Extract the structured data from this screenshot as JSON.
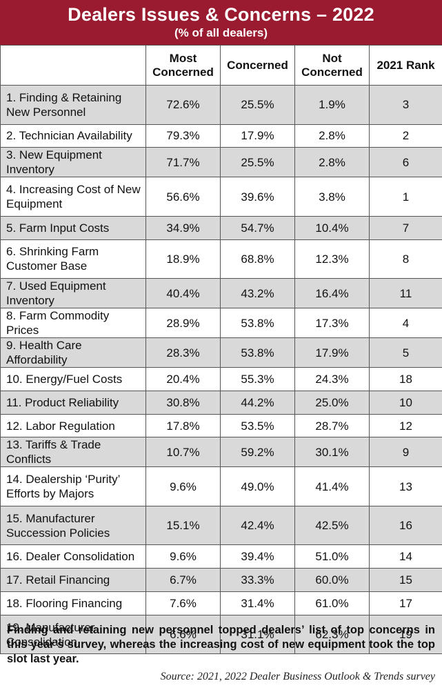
{
  "title": "Dealers Issues & Concerns – 2022",
  "subtitle": "(% of all dealers)",
  "chart_data": {
    "type": "table",
    "columns": [
      "",
      "Most Concerned",
      "Concerned",
      "Not Concerned",
      "2021 Rank"
    ],
    "rows": [
      {
        "issue": "1. Finding & Retaining New Personnel",
        "most": "72.6%",
        "concerned": "25.5%",
        "not": "1.9%",
        "rank": "3",
        "tall": true
      },
      {
        "issue": "2. Technician Availability",
        "most": "79.3%",
        "concerned": "17.9%",
        "not": "2.8%",
        "rank": "2",
        "tall": false
      },
      {
        "issue": "3. New Equipment Inventory",
        "most": "71.7%",
        "concerned": "25.5%",
        "not": "2.8%",
        "rank": "6",
        "tall": false
      },
      {
        "issue": "4. Increasing Cost of New Equipment",
        "most": "56.6%",
        "concerned": "39.6%",
        "not": "3.8%",
        "rank": "1",
        "tall": true
      },
      {
        "issue": "5. Farm Input Costs",
        "most": "34.9%",
        "concerned": "54.7%",
        "not": "10.4%",
        "rank": "7",
        "tall": false
      },
      {
        "issue": "6. Shrinking Farm Customer Base",
        "most": "18.9%",
        "concerned": "68.8%",
        "not": "12.3%",
        "rank": "8",
        "tall": true
      },
      {
        "issue": "7. Used Equipment Inventory",
        "most": "40.4%",
        "concerned": "43.2%",
        "not": "16.4%",
        "rank": "11",
        "tall": false
      },
      {
        "issue": "8. Farm Commodity Prices",
        "most": "28.9%",
        "concerned": "53.8%",
        "not": "17.3%",
        "rank": "4",
        "tall": false
      },
      {
        "issue": "9. Health Care Affordability",
        "most": "28.3%",
        "concerned": "53.8%",
        "not": "17.9%",
        "rank": "5",
        "tall": false
      },
      {
        "issue": "10. Energy/Fuel Costs",
        "most": "20.4%",
        "concerned": "55.3%",
        "not": "24.3%",
        "rank": "18",
        "tall": false
      },
      {
        "issue": "11. Product Reliability",
        "most": "30.8%",
        "concerned": "44.2%",
        "not": "25.0%",
        "rank": "10",
        "tall": false
      },
      {
        "issue": "12. Labor Regulation",
        "most": "17.8%",
        "concerned": "53.5%",
        "not": "28.7%",
        "rank": "12",
        "tall": false
      },
      {
        "issue": "13. Tariffs & Trade Conflicts",
        "most": "10.7%",
        "concerned": "59.2%",
        "not": "30.1%",
        "rank": "9",
        "tall": false
      },
      {
        "issue": "14. Dealership ‘Purity’ Efforts by Majors",
        "most": "9.6%",
        "concerned": "49.0%",
        "not": "41.4%",
        "rank": "13",
        "tall": true
      },
      {
        "issue": "15. Manufacturer Succession Policies",
        "most": "15.1%",
        "concerned": "42.4%",
        "not": "42.5%",
        "rank": "16",
        "tall": true
      },
      {
        "issue": "16. Dealer Consolidation",
        "most": "9.6%",
        "concerned": "39.4%",
        "not": "51.0%",
        "rank": "14",
        "tall": false
      },
      {
        "issue": "17. Retail Financing",
        "most": "6.7%",
        "concerned": "33.3%",
        "not": "60.0%",
        "rank": "15",
        "tall": false
      },
      {
        "issue": "18. Flooring Financing",
        "most": "7.6%",
        "concerned": "31.4%",
        "not": "61.0%",
        "rank": "17",
        "tall": false
      },
      {
        "issue": "19. Manufacturer Consolidation",
        "most": "6.6%",
        "concerned": "31.1%",
        "not": "62.3%",
        "rank": "19",
        "tall": true
      }
    ]
  },
  "caption": "Finding and retaining new personnel topped dealers’ list of top concerns in this year’s survey, whereas the increasing cost of new equipment took the top slot last year.",
  "source": "Source: 2021, 2022 Dealer Business Outlook & Trends survey",
  "colors": {
    "title_bar": "#9a1b2f",
    "shade_row": "#d9d9d9"
  }
}
